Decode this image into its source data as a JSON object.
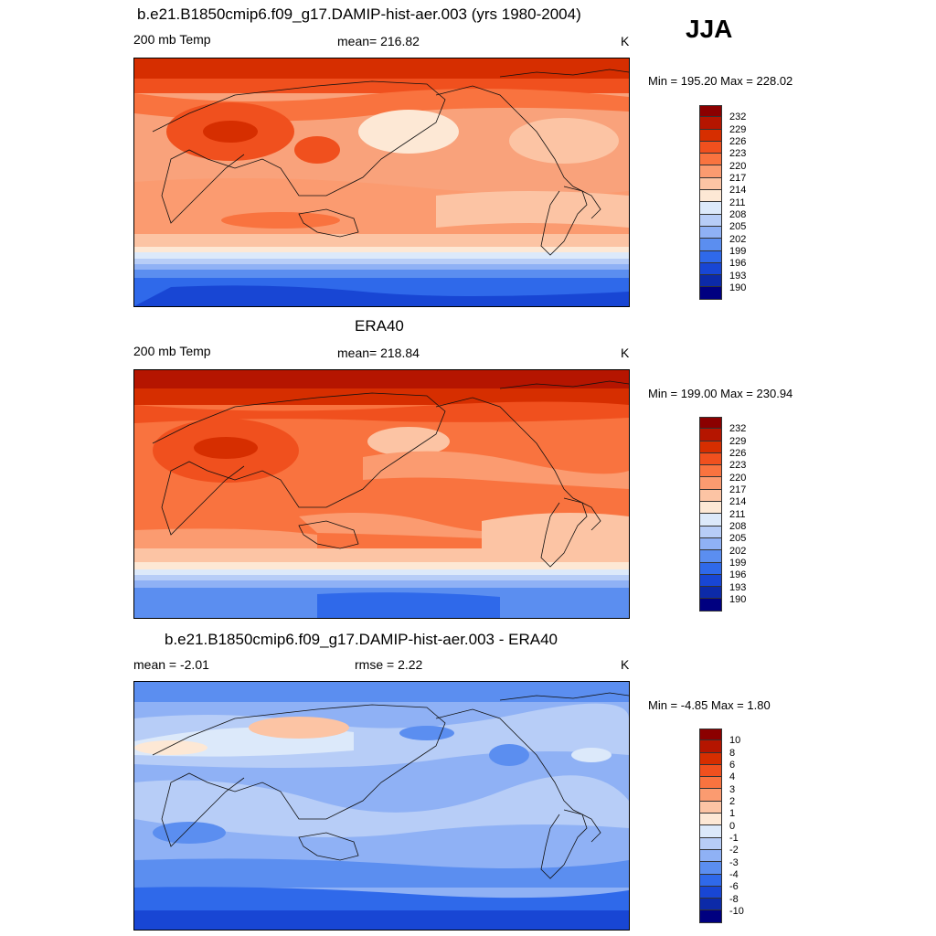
{
  "season": "JJA",
  "panels": [
    {
      "title": "b.e21.B1850cmip6.f09_g17.DAMIP-hist-aer.003 (yrs 1980-2004)",
      "left": "200 mb Temp",
      "center": "mean= 216.82",
      "units": "K",
      "minmax": "Min = 195.20 Max = 228.02",
      "colorbar": [
        "232",
        "229",
        "226",
        "223",
        "220",
        "217",
        "214",
        "211",
        "208",
        "205",
        "202",
        "199",
        "196",
        "193",
        "190"
      ]
    },
    {
      "title": "ERA40",
      "left": "200 mb Temp",
      "center": "mean= 218.84",
      "units": "K",
      "minmax": "Min = 199.00 Max = 230.94",
      "colorbar": [
        "232",
        "229",
        "226",
        "223",
        "220",
        "217",
        "214",
        "211",
        "208",
        "205",
        "202",
        "199",
        "196",
        "193",
        "190"
      ]
    },
    {
      "title": "b.e21.B1850cmip6.f09_g17.DAMIP-hist-aer.003 - ERA40",
      "left": "mean =  -2.01",
      "center": "rmse =   2.22",
      "units": "K",
      "minmax": "Min =  -4.85 Max =   1.80",
      "colorbar": [
        "10",
        "8",
        "6",
        "4",
        "3",
        "2",
        "1",
        "0",
        "-1",
        "-2",
        "-3",
        "-4",
        "-6",
        "-8",
        "-10"
      ]
    }
  ],
  "colors": {
    "swatches": [
      "#8b0000",
      "#b51500",
      "#d62e00",
      "#f0501e",
      "#f9733f",
      "#fb9b70",
      "#fcc4a4",
      "#fde8d5",
      "#dce9fa",
      "#b7cdf7",
      "#8fb1f5",
      "#5b8ef0",
      "#2f69ea",
      "#1846d4",
      "#0c2aa8",
      "#000080"
    ],
    "coast": "#111111"
  }
}
